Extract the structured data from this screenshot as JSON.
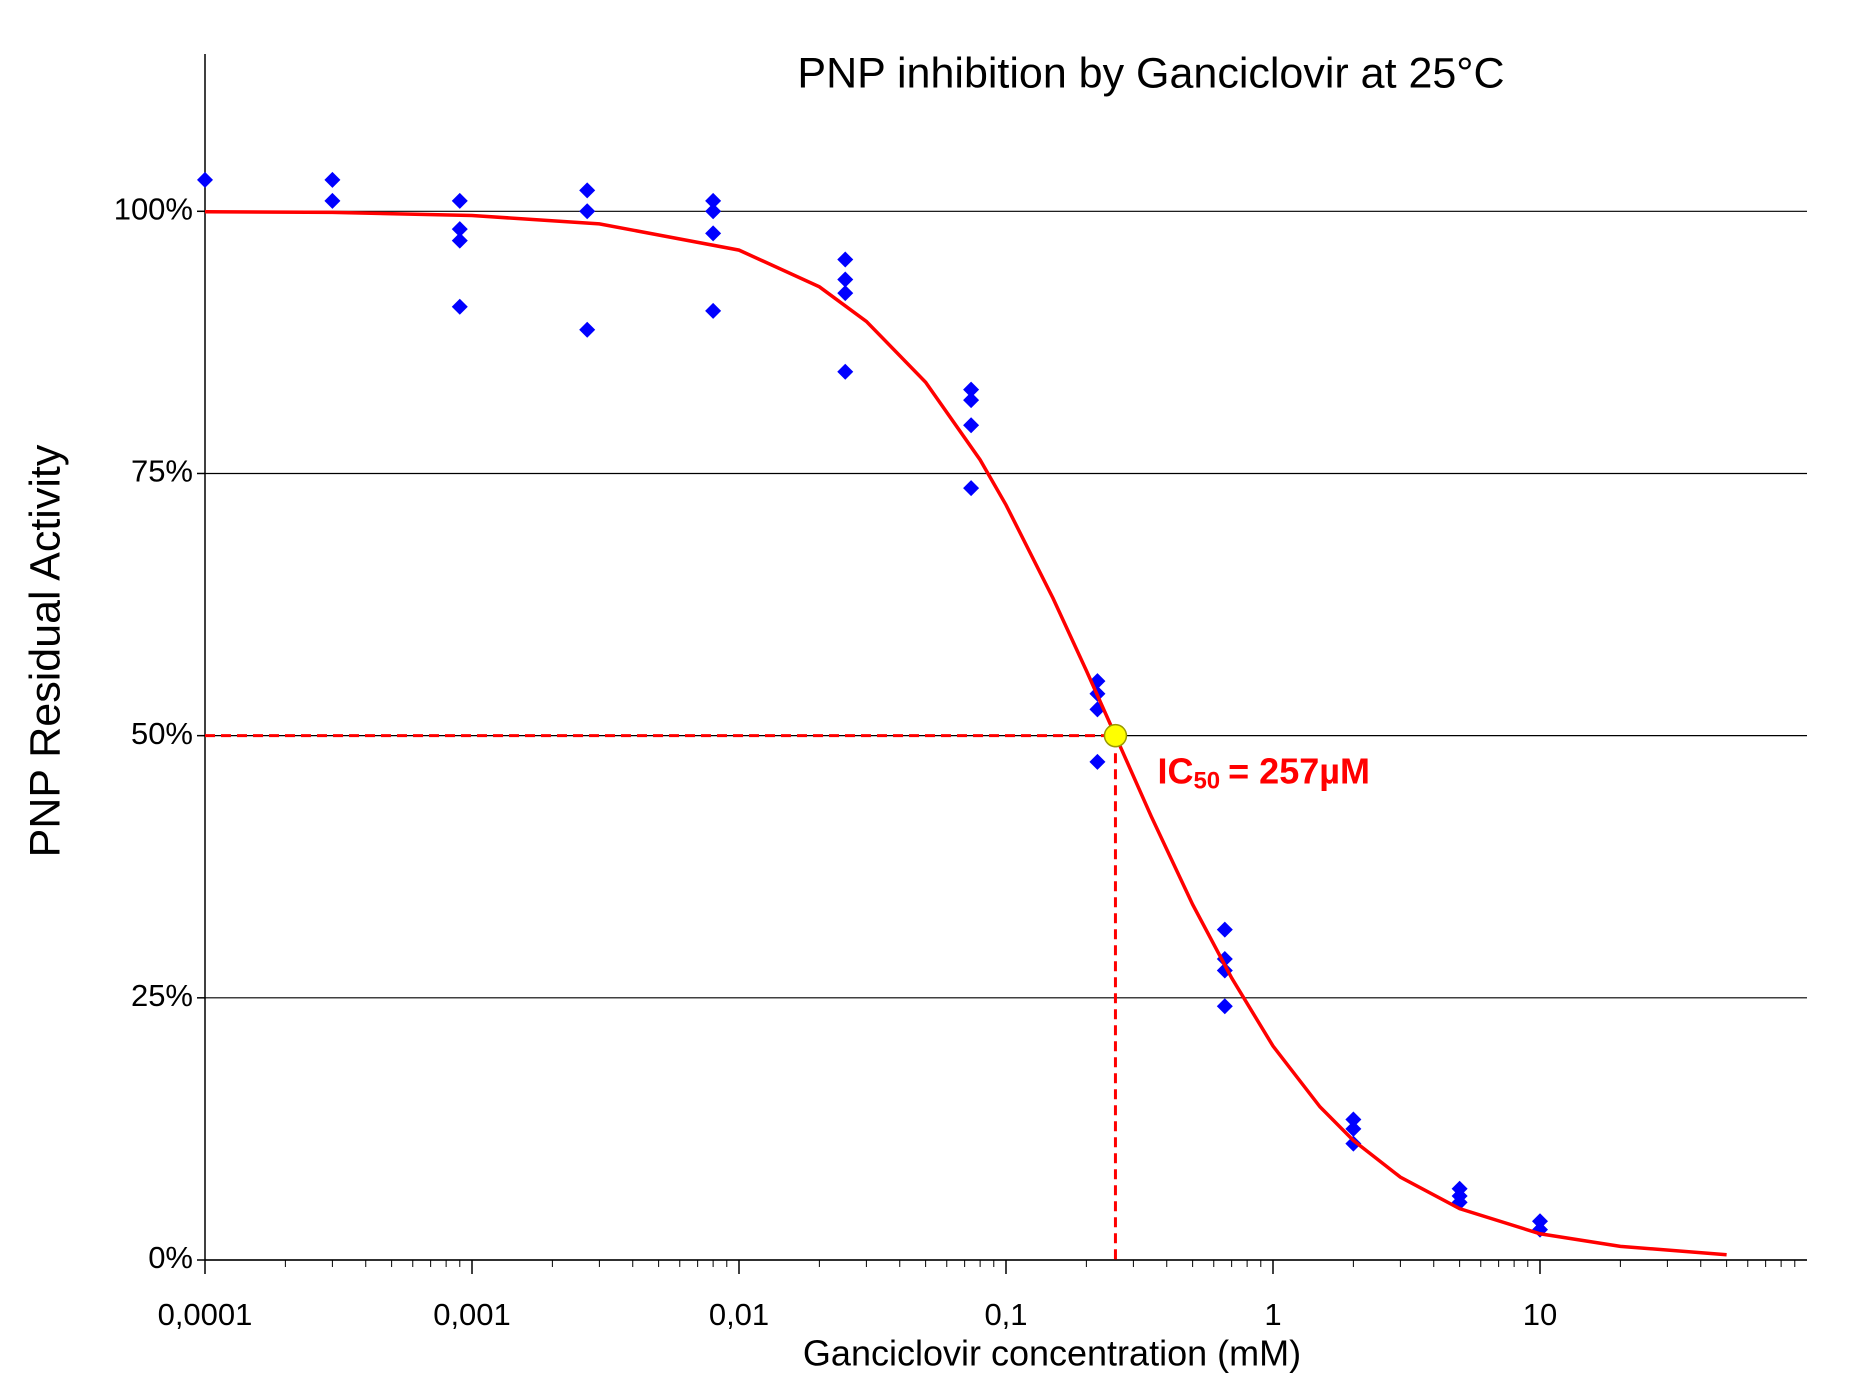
{
  "chart_data": {
    "type": "scatter",
    "title": "PNP inhibition by Ganciclovir at 25°C",
    "x_label": "Ganciclovir concentration (mM)",
    "y_label": "PNP Residual Activity",
    "xscale": "log",
    "xlim": [
      0.0001,
      100
    ],
    "ylim": [
      0,
      115
    ],
    "xticks": [
      {
        "value": 0.0001,
        "label": "0,0001"
      },
      {
        "value": 0.001,
        "label": "0,001"
      },
      {
        "value": 0.01,
        "label": "0,01"
      },
      {
        "value": 0.1,
        "label": "0,1"
      },
      1,
      10
    ],
    "yticks": [
      {
        "value": 0,
        "label": "0%"
      },
      {
        "value": 25,
        "label": "25%"
      },
      {
        "value": 50,
        "label": "50%"
      },
      {
        "value": 75,
        "label": "75%"
      },
      {
        "value": 100,
        "label": "100%"
      }
    ],
    "grid": true,
    "series": [
      {
        "mode": "markers",
        "color": "#0000ff",
        "x": [
          0.0001,
          0.0003,
          0.0003,
          0.0009,
          0.0009,
          0.0009,
          0.0009,
          0.0027,
          0.0027,
          0.0027,
          0.008,
          0.008,
          0.008,
          0.008,
          0.025,
          0.025,
          0.025,
          0.025,
          0.074,
          0.074,
          0.074,
          0.074,
          0.22,
          0.22,
          0.22,
          0.22,
          0.66,
          0.66,
          0.66,
          0.66,
          2,
          2,
          2,
          5,
          5,
          5,
          10,
          10
        ],
        "values": [
          103,
          103,
          101,
          101,
          98.3,
          97.2,
          90.9,
          102,
          100,
          88.7,
          101,
          100,
          97.9,
          90.5,
          95.4,
          93.5,
          92.2,
          84.7,
          83.0,
          82.0,
          79.6,
          73.6,
          55.2,
          54.0,
          52.5,
          47.5,
          31.5,
          28.7,
          27.6,
          24.2,
          13.4,
          12.5,
          11.1,
          6.8,
          6.1,
          5.5,
          3.7,
          2.9
        ]
      },
      {
        "mode": "line",
        "color": "#ff0000",
        "x": [
          0.0001,
          0.0003,
          0.001,
          0.003,
          0.01,
          0.02,
          0.03,
          0.05,
          0.08,
          0.1,
          0.15,
          0.2,
          0.257,
          0.35,
          0.5,
          0.7,
          1,
          1.5,
          2,
          3,
          5,
          10,
          20,
          50
        ],
        "values": [
          99.96,
          99.9,
          99.6,
          98.8,
          96.3,
          92.8,
          89.5,
          83.7,
          76.3,
          72.0,
          63.1,
          56.2,
          50,
          42.3,
          33.9,
          26.9,
          20.4,
          14.6,
          11.4,
          7.9,
          4.9,
          2.5,
          1.3,
          0.5
        ]
      }
    ],
    "annotation": {
      "x": 0.257,
      "y": 50,
      "marker_color": "#ffff00",
      "color": "#ff0000",
      "text": "IC",
      "subscript": "50",
      "text_after": "= 257µM"
    }
  }
}
